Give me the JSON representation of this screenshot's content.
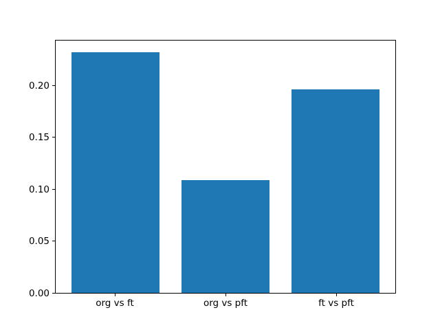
{
  "figure": {
    "background": "#ffffff",
    "title": ""
  },
  "chart_data": {
    "type": "bar",
    "title": "",
    "categories": [
      "org vs ft",
      "org vs pft",
      "ft vs pft"
    ],
    "x": [
      0,
      1,
      2
    ],
    "values": [
      0.233,
      0.109,
      0.197
    ],
    "bar_color": "#1f77b4",
    "bar_width": 0.8,
    "xlim": [
      -0.54,
      2.54
    ],
    "ylim": [
      0,
      0.244
    ],
    "yticks": [
      0,
      0.05,
      0.1,
      0.15,
      0.2
    ],
    "ytick_labels": [
      "0.00",
      "0.05",
      "0.10",
      "0.15",
      "0.20"
    ],
    "xlabel": "",
    "ylabel": "",
    "grid": false,
    "legend": "none",
    "axis_color": "#000000",
    "text_color": "#000000"
  }
}
